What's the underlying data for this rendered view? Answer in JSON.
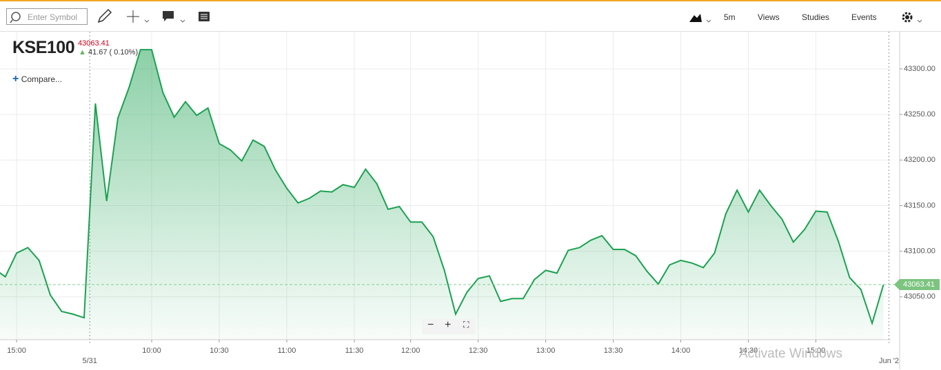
{
  "toolbar": {
    "symbol_placeholder": "Enter Symbol",
    "interval": "5m",
    "menus": [
      "Views",
      "Studies",
      "Events"
    ]
  },
  "chart_data": {
    "type": "line",
    "symbol": "KSE100",
    "change_label": "41.67 ( 0.10%)",
    "compare": "Compare...",
    "watermark": "Activate Windows",
    "color": "#1aa150",
    "last_price": 43063.41,
    "categories": [
      null,
      null,
      "15:00",
      null,
      null,
      null,
      null,
      null,
      null,
      null,
      null,
      null,
      null,
      null,
      "10:00",
      null,
      null,
      null,
      null,
      null,
      "10:30",
      null,
      null,
      null,
      null,
      null,
      "11:00",
      null,
      null,
      null,
      null,
      null,
      "11:30",
      null,
      null,
      null,
      null,
      "12:00",
      null,
      null,
      null,
      null,
      null,
      "12:30",
      null,
      null,
      null,
      null,
      null,
      "13:00",
      null,
      null,
      null,
      null,
      null,
      "13:30",
      null,
      null,
      null,
      null,
      null,
      "14:00",
      null,
      null,
      null,
      null,
      null,
      "14:30",
      null,
      null,
      null,
      null,
      null,
      "15:00",
      null,
      null,
      null,
      null,
      null,
      null
    ],
    "day_labels": [
      "5/31",
      "Jun '2"
    ],
    "values": [
      43081,
      43072,
      43098,
      43104,
      43090,
      43052,
      43034,
      43031,
      43027,
      43262,
      43155,
      43246,
      43280,
      43321,
      43321,
      43274,
      43247,
      43264,
      43249,
      43257,
      43218,
      43211,
      43199,
      43222,
      43215,
      43189,
      43169,
      43153,
      43158,
      43166,
      43165,
      43173,
      43170,
      43190,
      43174,
      43146,
      43149,
      43132,
      43132,
      43116,
      43079,
      43031,
      43055,
      43070,
      43073,
      43045,
      43048,
      43048,
      43069,
      43079,
      43076,
      43101,
      43104,
      43112,
      43117,
      43102,
      43102,
      43095,
      43078,
      43064,
      43085,
      43090,
      43087,
      43082,
      43098,
      43141,
      43167,
      43143,
      43167,
      43150,
      43135,
      43110,
      43124,
      43144,
      43143,
      43111,
      43071,
      43058,
      43021,
      43063.41
    ],
    "ylim": [
      43003,
      43340
    ],
    "yticks": [
      {
        "value": 43050,
        "label": "43050.00"
      },
      {
        "value": 43100,
        "label": "43100.00"
      },
      {
        "value": 43150,
        "label": "43150.00"
      },
      {
        "value": 43200,
        "label": "43200.00"
      },
      {
        "value": 43250,
        "label": "43250.00"
      },
      {
        "value": 43300,
        "label": "43300.00"
      }
    ],
    "grid": true
  }
}
